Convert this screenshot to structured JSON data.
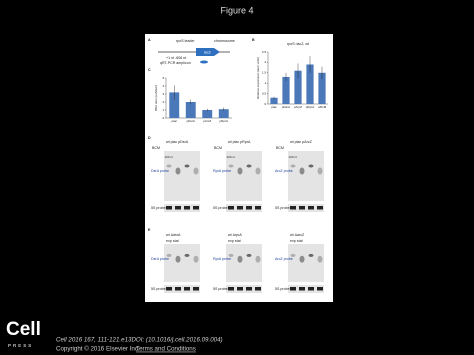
{
  "header": {
    "title": "Figure 4"
  },
  "figure": {
    "panel_a": {
      "letter": "A",
      "labels": [
        "rpoS leader",
        "chromosome",
        "lacZ",
        "+1 nt -606 nt",
        "qRT-PCR amplicon"
      ]
    },
    "panel_b": {
      "letter": "B",
      "type": "bar",
      "title": "rpoS::lacZ, wt",
      "ylabel": "Relative expression (lacZ units)",
      "color": "#4a78b8",
      "categories": [
        "plac",
        "pDsrA",
        "pArcZ",
        "pRprA",
        "+BCM"
      ],
      "values": [
        0.3,
        1.3,
        1.6,
        1.9,
        1.5
      ],
      "errors": [
        0.05,
        0.2,
        0.35,
        0.4,
        0.3
      ],
      "ylim": [
        0,
        2.5
      ],
      "yticks": [
        0,
        0.5,
        1,
        1.5,
        2,
        2.5
      ]
    },
    "panel_c": {
      "letter": "C",
      "type": "bar",
      "ylabel": "RNA ratio rpoS/lacZ",
      "color": "#4a78b8",
      "categories": [
        "plac",
        "pDsrA",
        "pArcZ",
        "pRprA"
      ],
      "values": [
        3.2,
        2.0,
        1.0,
        1.1
      ],
      "errors": [
        0.9,
        0.3,
        0.15,
        0.2
      ],
      "ylim": [
        0,
        5
      ],
      "yticks": [
        0,
        1,
        2,
        3,
        4,
        5
      ]
    },
    "panel_d": {
      "letter": "D",
      "blots": [
        {
          "header": "wt plac pDsrA",
          "bcm": "BCM",
          "marker": "100 nt",
          "probe": "DsrA probe",
          "control": "5S probe"
        },
        {
          "header": "wt plac pRprA",
          "bcm": "BCM",
          "marker": "100 nt",
          "probe": "RprA probe",
          "control": "5S probe"
        },
        {
          "header": "wt plac pArcZ",
          "bcm": "BCM",
          "marker": "100 nt",
          "probe": "ArcZ probe",
          "control": "5S probe"
        }
      ]
    },
    "panel_e": {
      "letter": "E",
      "blots": [
        {
          "header": "wt ΔdsrA",
          "phase": "exp stat",
          "probe": "DsrA probe",
          "control": "5S probe"
        },
        {
          "header": "wt ΔrprA",
          "phase": "exp stat",
          "probe": "RprA probe",
          "control": "5S probe"
        },
        {
          "header": "wt ΔarcZ",
          "phase": "exp stat",
          "probe": "ArcZ probe",
          "control": "5S probe"
        }
      ]
    }
  },
  "logo": {
    "name": "Cell",
    "sub": "PRESS"
  },
  "footer": {
    "citation": "Cell 2016 167, 111-121.e13DOI: (10.1016/j.cell.2016.09.004)",
    "copyright": "Copyright © 2016 Elsevier Inc.",
    "link": "Terms and Conditions"
  }
}
